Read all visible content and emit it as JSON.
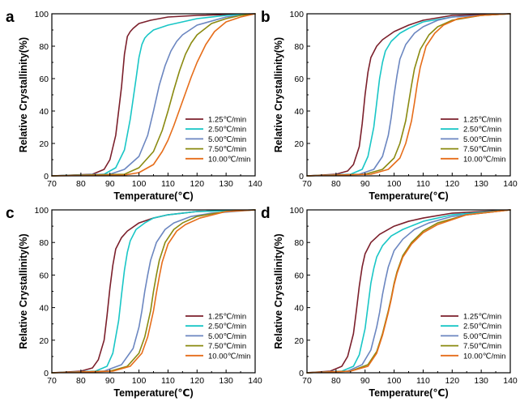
{
  "figure": {
    "colors": {
      "1.25": "#7b1f2b",
      "2.50": "#19c6c6",
      "5.00": "#6b86c0",
      "7.50": "#8a8a10",
      "10.00": "#e66d1a"
    }
  },
  "chart_data": [
    {
      "panel": "a",
      "type": "line",
      "xlabel": "Temperature(℃)",
      "ylabel": "Relative Crystallinity(%)",
      "xlim": [
        70,
        140
      ],
      "ylim": [
        0,
        100
      ],
      "xticks": [
        "70",
        "80",
        "90",
        "100",
        "110",
        "120",
        "130",
        "140"
      ],
      "yticks": [
        "0",
        "20",
        "40",
        "60",
        "80",
        "100"
      ],
      "legend_position": "bottom-right",
      "series": [
        {
          "name": "1.25℃/min",
          "color": "#7b1f2b",
          "x": [
            70,
            84,
            88,
            90,
            92,
            94,
            95,
            96,
            97,
            98,
            100,
            104,
            110,
            120,
            140
          ],
          "y": [
            0,
            1,
            4,
            10,
            25,
            55,
            75,
            86,
            89,
            91,
            94,
            96,
            98,
            99,
            100
          ]
        },
        {
          "name": "2.50℃/min",
          "color": "#19c6c6",
          "x": [
            70,
            88,
            92,
            95,
            97,
            99,
            100,
            101,
            102,
            103,
            105,
            110,
            120,
            130,
            140
          ],
          "y": [
            0,
            1,
            5,
            16,
            35,
            60,
            73,
            81,
            85,
            87,
            90,
            93,
            97,
            99,
            100
          ]
        },
        {
          "name": "5.00℃/min",
          "color": "#6b86c0",
          "x": [
            70,
            90,
            95,
            100,
            103,
            105,
            107,
            109,
            111,
            113,
            115,
            120,
            130,
            140
          ],
          "y": [
            0,
            1,
            4,
            12,
            25,
            40,
            56,
            68,
            77,
            83,
            87,
            93,
            98,
            100
          ]
        },
        {
          "name": "7.50℃/min",
          "color": "#8a8a10",
          "x": [
            70,
            95,
            100,
            105,
            108,
            110,
            112,
            114,
            116,
            118,
            120,
            125,
            130,
            135,
            140
          ],
          "y": [
            0,
            1,
            5,
            15,
            28,
            40,
            53,
            65,
            75,
            82,
            87,
            94,
            97,
            99,
            100
          ]
        },
        {
          "name": "10.00℃/min",
          "color": "#e66d1a",
          "x": [
            70,
            95,
            100,
            105,
            108,
            110,
            112,
            114,
            116,
            118,
            120,
            123,
            126,
            130,
            135,
            140
          ],
          "y": [
            0,
            0.5,
            2,
            7,
            15,
            22,
            31,
            41,
            51,
            61,
            70,
            81,
            89,
            95,
            98,
            100
          ]
        }
      ]
    },
    {
      "panel": "b",
      "type": "line",
      "xlabel": "Temperature(℃)",
      "ylabel": "Relative Crystallinity(%)",
      "xlim": [
        70,
        140
      ],
      "ylim": [
        0,
        100
      ],
      "xticks": [
        "70",
        "80",
        "90",
        "100",
        "110",
        "120",
        "130",
        "140"
      ],
      "yticks": [
        "0",
        "20",
        "40",
        "60",
        "80",
        "100"
      ],
      "legend_position": "bottom-right",
      "series": [
        {
          "name": "1.25℃/min",
          "color": "#7b1f2b",
          "x": [
            70,
            80,
            84,
            86,
            88,
            89,
            90,
            91,
            92,
            94,
            96,
            100,
            105,
            110,
            120,
            140
          ],
          "y": [
            0,
            1,
            3,
            7,
            18,
            32,
            50,
            64,
            73,
            80,
            84,
            89,
            93,
            96,
            99,
            100
          ]
        },
        {
          "name": "2.50℃/min",
          "color": "#19c6c6",
          "x": [
            70,
            85,
            89,
            91,
            93,
            94,
            95,
            96,
            97,
            99,
            102,
            105,
            110,
            120,
            140
          ],
          "y": [
            0,
            1,
            4,
            12,
            30,
            45,
            60,
            70,
            77,
            83,
            88,
            91,
            95,
            98,
            100
          ]
        },
        {
          "name": "5.00℃/min",
          "color": "#6b86c0",
          "x": [
            70,
            88,
            93,
            96,
            98,
            99,
            100,
            101,
            102,
            104,
            107,
            110,
            115,
            120,
            140
          ],
          "y": [
            0,
            1,
            4,
            12,
            25,
            36,
            50,
            62,
            72,
            81,
            88,
            92,
            96,
            98,
            100
          ]
        },
        {
          "name": "7.50℃/min",
          "color": "#8a8a10",
          "x": [
            70,
            90,
            96,
            100,
            102,
            104,
            105,
            106,
            107,
            109,
            112,
            115,
            120,
            130,
            140
          ],
          "y": [
            0,
            1,
            4,
            11,
            20,
            34,
            45,
            56,
            66,
            78,
            87,
            92,
            96,
            99,
            100
          ]
        },
        {
          "name": "10.00℃/min",
          "color": "#e66d1a",
          "x": [
            70,
            92,
            98,
            102,
            104,
            106,
            107,
            108,
            109,
            111,
            114,
            117,
            122,
            130,
            140
          ],
          "y": [
            0,
            1,
            4,
            11,
            20,
            34,
            45,
            57,
            67,
            80,
            88,
            93,
            97,
            99,
            100
          ]
        }
      ]
    },
    {
      "panel": "c",
      "type": "line",
      "xlabel": "Temperature(℃)",
      "ylabel": "Relative Crystallinity(%)",
      "xlim": [
        70,
        140
      ],
      "ylim": [
        0,
        100
      ],
      "xticks": [
        "70",
        "80",
        "90",
        "100",
        "110",
        "120",
        "130",
        "140"
      ],
      "yticks": [
        "0",
        "20",
        "40",
        "60",
        "80",
        "100"
      ],
      "legend_position": "bottom-right",
      "series": [
        {
          "name": "1.25℃/min",
          "color": "#7b1f2b",
          "x": [
            70,
            80,
            84,
            86,
            88,
            89,
            90,
            91,
            92,
            94,
            96,
            100,
            105,
            110,
            120,
            140
          ],
          "y": [
            0,
            1,
            3,
            8,
            20,
            35,
            52,
            66,
            76,
            83,
            87,
            92,
            95,
            97,
            99,
            100
          ]
        },
        {
          "name": "2.50℃/min",
          "color": "#19c6c6",
          "x": [
            70,
            85,
            89,
            91,
            93,
            94,
            95,
            96,
            97,
            99,
            102,
            105,
            110,
            120,
            140
          ],
          "y": [
            0,
            1,
            4,
            12,
            32,
            48,
            63,
            74,
            81,
            88,
            92,
            95,
            97,
            99,
            100
          ]
        },
        {
          "name": "5.00℃/min",
          "color": "#6b86c0",
          "x": [
            70,
            88,
            94,
            98,
            100,
            101,
            102,
            103,
            104,
            106,
            109,
            112,
            118,
            125,
            140
          ],
          "y": [
            0,
            1,
            5,
            15,
            28,
            38,
            50,
            60,
            69,
            80,
            88,
            92,
            96,
            98,
            100
          ]
        },
        {
          "name": "7.50℃/min",
          "color": "#8a8a10",
          "x": [
            70,
            90,
            96,
            100,
            102,
            104,
            105,
            106,
            107,
            109,
            112,
            115,
            120,
            130,
            140
          ],
          "y": [
            0,
            1,
            4,
            12,
            22,
            38,
            50,
            60,
            69,
            80,
            88,
            92,
            96,
            99,
            100
          ]
        },
        {
          "name": "10.00℃/min",
          "color": "#e66d1a",
          "x": [
            70,
            91,
            97,
            101,
            103,
            105,
            106,
            107,
            108,
            110,
            113,
            116,
            121,
            130,
            140
          ],
          "y": [
            0,
            1,
            4,
            12,
            22,
            38,
            49,
            59,
            68,
            79,
            87,
            91,
            95,
            99,
            100
          ]
        }
      ]
    },
    {
      "panel": "d",
      "type": "line",
      "xlabel": "Temperature(℃)",
      "ylabel": "Relative Crystallinity(%)",
      "xlim": [
        70,
        140
      ],
      "ylim": [
        0,
        100
      ],
      "xticks": [
        "70",
        "80",
        "90",
        "100",
        "110",
        "120",
        "130",
        "140"
      ],
      "yticks": [
        "0",
        "20",
        "40",
        "60",
        "80",
        "100"
      ],
      "legend_position": "bottom-right",
      "series": [
        {
          "name": "1.25℃/min",
          "color": "#7b1f2b",
          "x": [
            70,
            78,
            82,
            84,
            86,
            87,
            88,
            89,
            90,
            92,
            95,
            100,
            105,
            110,
            120,
            140
          ],
          "y": [
            0,
            1,
            4,
            10,
            24,
            38,
            53,
            65,
            73,
            80,
            85,
            90,
            93,
            95,
            98,
            100
          ]
        },
        {
          "name": "2.50℃/min",
          "color": "#19c6c6",
          "x": [
            70,
            82,
            86,
            88,
            90,
            91,
            92,
            93,
            94,
            96,
            99,
            103,
            110,
            120,
            140
          ],
          "y": [
            0,
            1,
            4,
            11,
            27,
            41,
            55,
            64,
            71,
            78,
            84,
            88,
            93,
            97,
            100
          ]
        },
        {
          "name": "5.00℃/min",
          "color": "#6b86c0",
          "x": [
            70,
            84,
            89,
            92,
            94,
            95,
            96,
            97,
            98,
            100,
            103,
            107,
            112,
            120,
            140
          ],
          "y": [
            0,
            1,
            5,
            14,
            28,
            37,
            48,
            57,
            65,
            75,
            82,
            88,
            92,
            96,
            100
          ]
        },
        {
          "name": "7.50℃/min",
          "color": "#8a8a10",
          "x": [
            70,
            85,
            91,
            94,
            96,
            98,
            99,
            100,
            101,
            103,
            106,
            110,
            115,
            125,
            140
          ],
          "y": [
            0,
            1,
            5,
            13,
            24,
            38,
            46,
            55,
            62,
            72,
            80,
            87,
            92,
            97,
            100
          ]
        },
        {
          "name": "10.00℃/min",
          "color": "#e66d1a",
          "x": [
            70,
            85,
            91,
            94,
            96,
            98,
            99,
            100,
            101,
            103,
            106,
            110,
            115,
            125,
            140
          ],
          "y": [
            0,
            1,
            4,
            12,
            23,
            37,
            45,
            54,
            61,
            71,
            79,
            86,
            91,
            97,
            100
          ]
        }
      ]
    }
  ]
}
